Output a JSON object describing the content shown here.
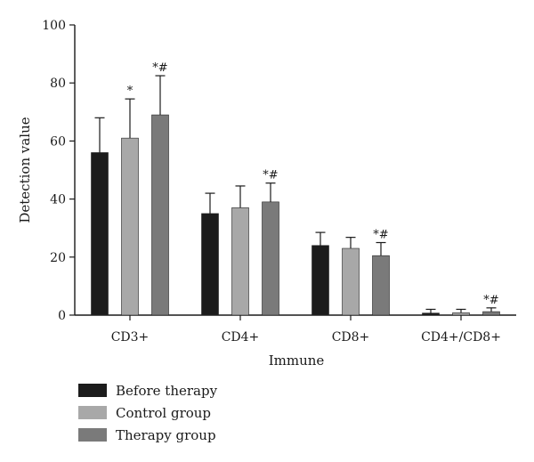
{
  "chart_data": {
    "type": "bar",
    "title": "",
    "xlabel": "Immune",
    "ylabel": "Detection value",
    "ylim": [
      0,
      100
    ],
    "yticks": [
      "0",
      "20",
      "40",
      "60",
      "80",
      "100"
    ],
    "categories": [
      "CD3+",
      "CD4+",
      "CD8+",
      "CD4+/CD8+"
    ],
    "series": [
      {
        "name": "Before therapy",
        "color": "#1c1c1c",
        "values": [
          56,
          35,
          24,
          0.7
        ],
        "errors": [
          12,
          7,
          4.5,
          1.3
        ],
        "marks": [
          "",
          "",
          "",
          ""
        ]
      },
      {
        "name": "Control group",
        "color": "#a8a8a8",
        "values": [
          61,
          37,
          23,
          0.8
        ],
        "errors": [
          13.5,
          7.5,
          3.8,
          1.2
        ],
        "marks": [
          "*",
          "",
          "",
          ""
        ]
      },
      {
        "name": "Therapy group",
        "color": "#7a7a7a",
        "values": [
          69,
          39,
          20.5,
          1.2
        ],
        "errors": [
          13.5,
          6.5,
          4.5,
          1.3
        ],
        "marks": [
          "*#",
          "*#",
          "*#",
          "*#"
        ]
      }
    ],
    "grid": false,
    "legend_position": "bottom-left"
  }
}
